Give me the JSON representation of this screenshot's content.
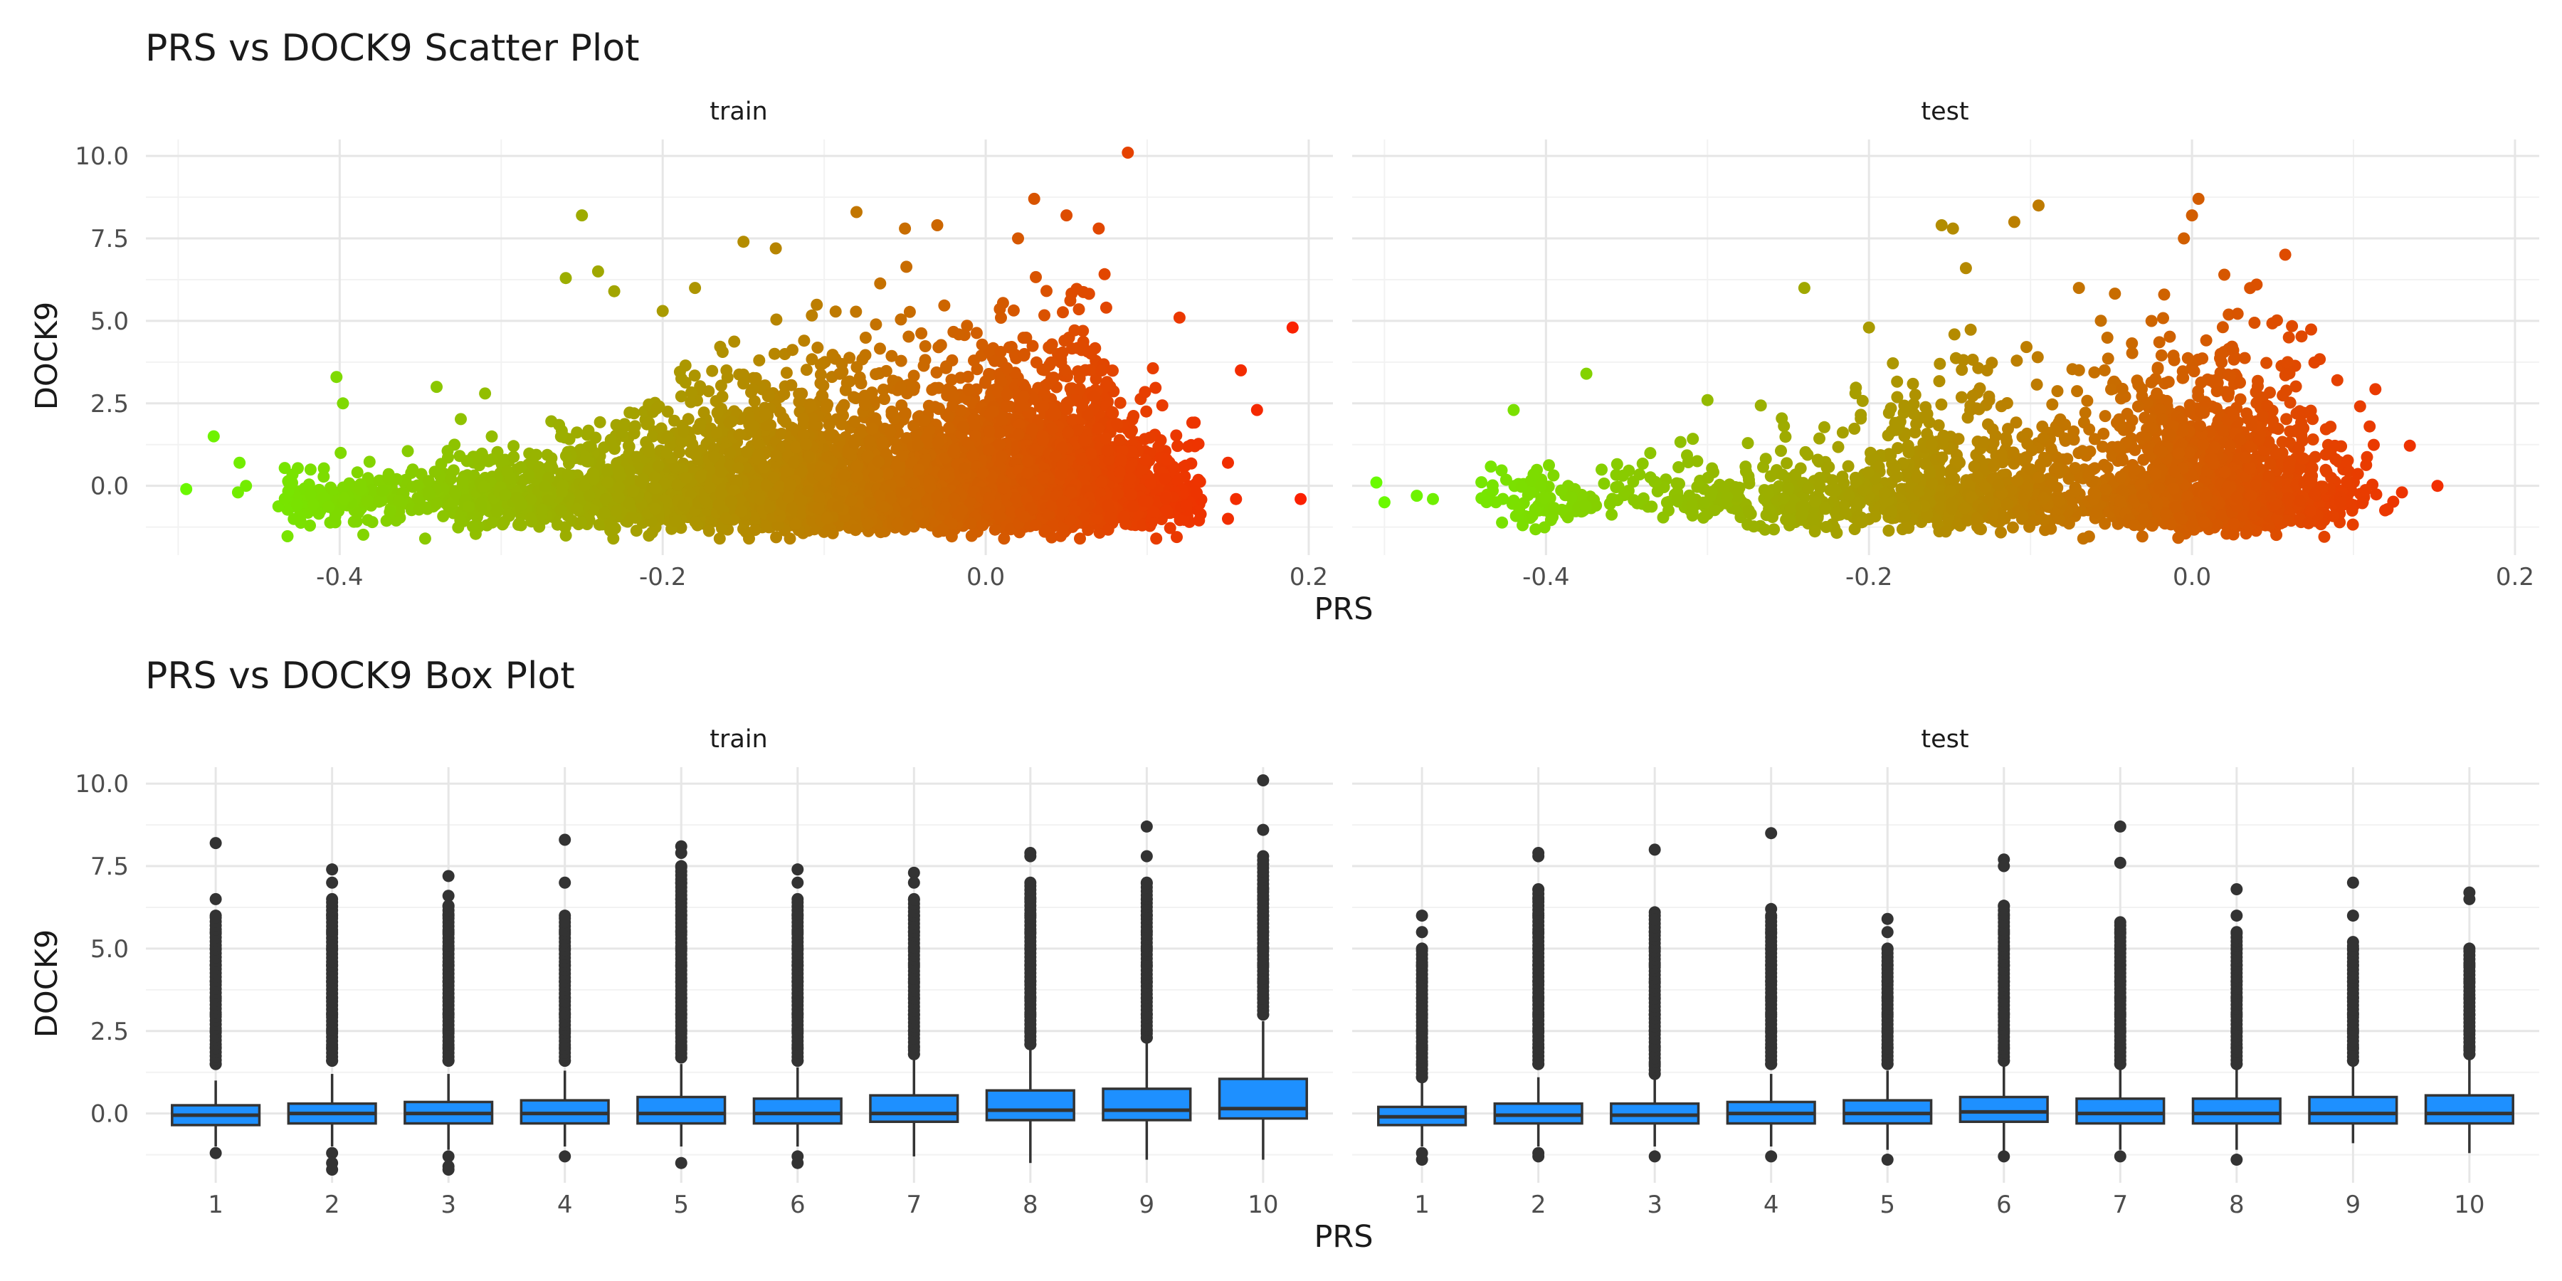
{
  "chart_data": [
    {
      "type": "scatter",
      "title": "PRS vs DOCK9 Scatter Plot",
      "xlabel": "PRS",
      "ylabel": "DOCK9",
      "xlim": [
        -0.52,
        0.215
      ],
      "ylim": [
        -2.1,
        10.5
      ],
      "x_ticks": [
        -0.4,
        -0.2,
        0.0,
        0.2
      ],
      "x_tick_labels": [
        "-0.4",
        "-0.2",
        "0.0",
        "0.2"
      ],
      "y_ticks": [
        0.0,
        2.5,
        5.0,
        7.5,
        10.0
      ],
      "y_tick_labels": [
        "0.0",
        "2.5",
        "5.0",
        "7.5",
        "10.0"
      ],
      "grid": true,
      "color_gradient": {
        "low": "#66ff00",
        "high": "#ff1a00"
      },
      "facets": [
        {
          "label": "train",
          "n_points": 6000,
          "points": [
            [
              -0.495,
              -0.1
            ],
            [
              -0.478,
              1.5
            ],
            [
              -0.462,
              0.7
            ],
            [
              -0.458,
              0.0
            ],
            [
              -0.463,
              -0.2
            ],
            [
              -0.398,
              2.5
            ],
            [
              -0.402,
              3.3
            ],
            [
              -0.34,
              3.0
            ],
            [
              -0.31,
              2.8
            ],
            [
              -0.25,
              8.2
            ],
            [
              -0.26,
              6.3
            ],
            [
              -0.24,
              6.5
            ],
            [
              -0.23,
              5.9
            ],
            [
              -0.2,
              5.3
            ],
            [
              -0.18,
              6.0
            ],
            [
              -0.15,
              7.4
            ],
            [
              -0.13,
              7.2
            ],
            [
              -0.08,
              8.3
            ],
            [
              -0.05,
              7.8
            ],
            [
              -0.03,
              7.9
            ],
            [
              0.02,
              7.5
            ],
            [
              0.03,
              8.7
            ],
            [
              0.05,
              8.2
            ],
            [
              0.07,
              7.8
            ],
            [
              0.088,
              10.1
            ],
            [
              0.12,
              5.1
            ],
            [
              0.19,
              4.8
            ],
            [
              0.158,
              3.5
            ],
            [
              0.168,
              2.3
            ],
            [
              0.15,
              0.7
            ],
            [
              0.155,
              -0.4
            ],
            [
              0.195,
              -0.4
            ],
            [
              0.15,
              -1.0
            ]
          ]
        },
        {
          "label": "test",
          "n_points": 2600,
          "points": [
            [
              -0.505,
              0.1
            ],
            [
              -0.5,
              -0.5
            ],
            [
              -0.48,
              -0.3
            ],
            [
              -0.47,
              -0.4
            ],
            [
              -0.42,
              2.3
            ],
            [
              -0.375,
              3.4
            ],
            [
              -0.3,
              2.6
            ],
            [
              -0.24,
              6.0
            ],
            [
              -0.2,
              4.8
            ],
            [
              -0.155,
              7.9
            ],
            [
              -0.148,
              7.8
            ],
            [
              -0.14,
              6.6
            ],
            [
              -0.11,
              8.0
            ],
            [
              -0.095,
              8.5
            ],
            [
              -0.07,
              6.0
            ],
            [
              -0.005,
              7.5
            ],
            [
              0.0,
              8.2
            ],
            [
              0.004,
              8.7
            ],
            [
              0.02,
              6.4
            ],
            [
              0.04,
              6.1
            ],
            [
              0.06,
              4.5
            ],
            [
              0.09,
              3.2
            ],
            [
              0.11,
              1.8
            ],
            [
              0.13,
              -0.2
            ],
            [
              0.152,
              0.0
            ]
          ]
        }
      ]
    },
    {
      "type": "box",
      "title": "PRS vs DOCK9 Box Plot",
      "xlabel": "PRS",
      "ylabel": "DOCK9",
      "ylim": [
        -2.1,
        10.5
      ],
      "y_ticks": [
        0.0,
        2.5,
        5.0,
        7.5,
        10.0
      ],
      "y_tick_labels": [
        "0.0",
        "2.5",
        "5.0",
        "7.5",
        "10.0"
      ],
      "categories": [
        "1",
        "2",
        "3",
        "4",
        "5",
        "6",
        "7",
        "8",
        "9",
        "10"
      ],
      "grid": true,
      "fill_color": "#1e90ff",
      "outline_color": "#333333",
      "facets": [
        {
          "label": "train",
          "boxes": [
            {
              "q1": -0.35,
              "median": -0.05,
              "q3": 0.25,
              "whisker_low": -1.0,
              "whisker_high": 1.0,
              "outliers": [
                8.2,
                6.5,
                6.0,
                5.5,
                5.0,
                4.5,
                4.0,
                3.5,
                3.0,
                2.5,
                2.0,
                1.5,
                -1.2
              ]
            },
            {
              "q1": -0.3,
              "median": 0.0,
              "q3": 0.3,
              "whisker_low": -1.0,
              "whisker_high": 1.2,
              "outliers": [
                7.4,
                7.0,
                6.5,
                6.0,
                5.5,
                5.0,
                4.5,
                4.0,
                3.5,
                3.0,
                2.5,
                2.0,
                1.6,
                -1.2,
                -1.5,
                -1.7
              ]
            },
            {
              "q1": -0.3,
              "median": 0.0,
              "q3": 0.35,
              "whisker_low": -1.1,
              "whisker_high": 1.2,
              "outliers": [
                7.2,
                6.6,
                6.3,
                6.0,
                5.5,
                5.0,
                4.5,
                4.0,
                3.5,
                3.0,
                2.5,
                2.0,
                1.6,
                -1.3,
                -1.6,
                -1.7
              ]
            },
            {
              "q1": -0.3,
              "median": 0.0,
              "q3": 0.4,
              "whisker_low": -1.0,
              "whisker_high": 1.3,
              "outliers": [
                8.3,
                7.0,
                6.0,
                5.5,
                5.0,
                4.5,
                4.0,
                3.5,
                3.0,
                2.5,
                2.0,
                1.6,
                -1.3
              ]
            },
            {
              "q1": -0.3,
              "median": 0.0,
              "q3": 0.5,
              "whisker_low": -1.0,
              "whisker_high": 1.5,
              "outliers": [
                8.1,
                7.9,
                7.5,
                7.0,
                6.5,
                6.0,
                5.5,
                5.0,
                4.5,
                4.0,
                3.5,
                3.0,
                2.5,
                2.0,
                1.7,
                -1.5
              ]
            },
            {
              "q1": -0.3,
              "median": 0.0,
              "q3": 0.45,
              "whisker_low": -1.0,
              "whisker_high": 1.4,
              "outliers": [
                7.4,
                7.0,
                6.5,
                6.0,
                5.5,
                5.0,
                4.5,
                4.0,
                3.5,
                3.0,
                2.5,
                2.0,
                1.6,
                -1.3,
                -1.5
              ]
            },
            {
              "q1": -0.25,
              "median": 0.0,
              "q3": 0.55,
              "whisker_low": -1.3,
              "whisker_high": 1.7,
              "outliers": [
                7.3,
                7.0,
                6.5,
                6.0,
                5.5,
                5.0,
                4.5,
                4.0,
                3.5,
                3.0,
                2.5,
                2.0,
                1.8
              ]
            },
            {
              "q1": -0.2,
              "median": 0.1,
              "q3": 0.7,
              "whisker_low": -1.5,
              "whisker_high": 2.0,
              "outliers": [
                7.9,
                7.8,
                7.0,
                6.5,
                6.0,
                5.5,
                5.0,
                4.5,
                4.0,
                3.5,
                3.0,
                2.5,
                2.1
              ]
            },
            {
              "q1": -0.2,
              "median": 0.1,
              "q3": 0.75,
              "whisker_low": -1.4,
              "whisker_high": 2.2,
              "outliers": [
                8.7,
                7.8,
                7.0,
                6.5,
                6.0,
                5.5,
                5.0,
                4.5,
                4.0,
                3.5,
                3.0,
                2.5,
                2.3
              ]
            },
            {
              "q1": -0.15,
              "median": 0.15,
              "q3": 1.05,
              "whisker_low": -1.4,
              "whisker_high": 2.8,
              "outliers": [
                10.1,
                8.6,
                7.8,
                6.8,
                6.5,
                6.0,
                5.5,
                5.0,
                4.5,
                4.0,
                3.5,
                3.0
              ]
            }
          ]
        },
        {
          "label": "test",
          "boxes": [
            {
              "q1": -0.35,
              "median": -0.1,
              "q3": 0.2,
              "whisker_low": -1.0,
              "whisker_high": 1.0,
              "outliers": [
                6.0,
                5.5,
                5.0,
                4.5,
                4.0,
                3.5,
                3.0,
                2.5,
                2.0,
                1.5,
                1.1,
                -1.2,
                -1.4
              ]
            },
            {
              "q1": -0.3,
              "median": -0.05,
              "q3": 0.3,
              "whisker_low": -1.0,
              "whisker_high": 1.1,
              "outliers": [
                7.9,
                7.8,
                6.8,
                6.5,
                6.0,
                5.5,
                5.0,
                4.5,
                4.0,
                3.5,
                3.0,
                2.5,
                2.0,
                1.5,
                -1.2,
                -1.3
              ]
            },
            {
              "q1": -0.3,
              "median": -0.05,
              "q3": 0.3,
              "whisker_low": -1.0,
              "whisker_high": 1.1,
              "outliers": [
                8.0,
                6.1,
                6.0,
                5.5,
                5.0,
                4.5,
                4.0,
                3.5,
                3.0,
                2.5,
                2.0,
                1.5,
                1.2,
                -1.3
              ]
            },
            {
              "q1": -0.3,
              "median": 0.0,
              "q3": 0.35,
              "whisker_low": -1.0,
              "whisker_high": 1.2,
              "outliers": [
                8.5,
                6.2,
                6.0,
                5.5,
                5.0,
                4.5,
                4.0,
                3.5,
                3.0,
                2.5,
                2.0,
                1.5,
                -1.3
              ]
            },
            {
              "q1": -0.3,
              "median": 0.0,
              "q3": 0.4,
              "whisker_low": -1.1,
              "whisker_high": 1.3,
              "outliers": [
                5.9,
                5.5,
                5.0,
                4.5,
                4.0,
                3.5,
                3.0,
                2.5,
                2.0,
                1.5,
                -1.4
              ]
            },
            {
              "q1": -0.25,
              "median": 0.05,
              "q3": 0.5,
              "whisker_low": -1.2,
              "whisker_high": 1.5,
              "outliers": [
                7.7,
                7.5,
                6.3,
                6.0,
                5.5,
                5.0,
                4.5,
                4.0,
                3.5,
                3.0,
                2.5,
                2.0,
                1.6,
                -1.3
              ]
            },
            {
              "q1": -0.3,
              "median": 0.0,
              "q3": 0.45,
              "whisker_low": -1.1,
              "whisker_high": 1.4,
              "outliers": [
                8.7,
                7.6,
                5.8,
                5.5,
                5.0,
                4.5,
                4.0,
                3.5,
                3.0,
                2.5,
                2.0,
                1.5,
                -1.3
              ]
            },
            {
              "q1": -0.3,
              "median": 0.0,
              "q3": 0.45,
              "whisker_low": -1.1,
              "whisker_high": 1.4,
              "outliers": [
                6.8,
                6.0,
                5.5,
                5.0,
                4.5,
                4.0,
                3.5,
                3.0,
                2.5,
                2.0,
                1.5,
                -1.4
              ]
            },
            {
              "q1": -0.3,
              "median": 0.0,
              "q3": 0.5,
              "whisker_low": -0.9,
              "whisker_high": 1.5,
              "outliers": [
                7.0,
                6.0,
                5.2,
                5.0,
                4.5,
                4.0,
                3.5,
                3.0,
                2.5,
                2.0,
                1.6
              ]
            },
            {
              "q1": -0.3,
              "median": 0.0,
              "q3": 0.55,
              "whisker_low": -1.2,
              "whisker_high": 1.7,
              "outliers": [
                6.7,
                6.5,
                5.0,
                4.5,
                4.0,
                3.5,
                3.0,
                2.5,
                2.0,
                1.8
              ]
            }
          ]
        }
      ]
    }
  ]
}
